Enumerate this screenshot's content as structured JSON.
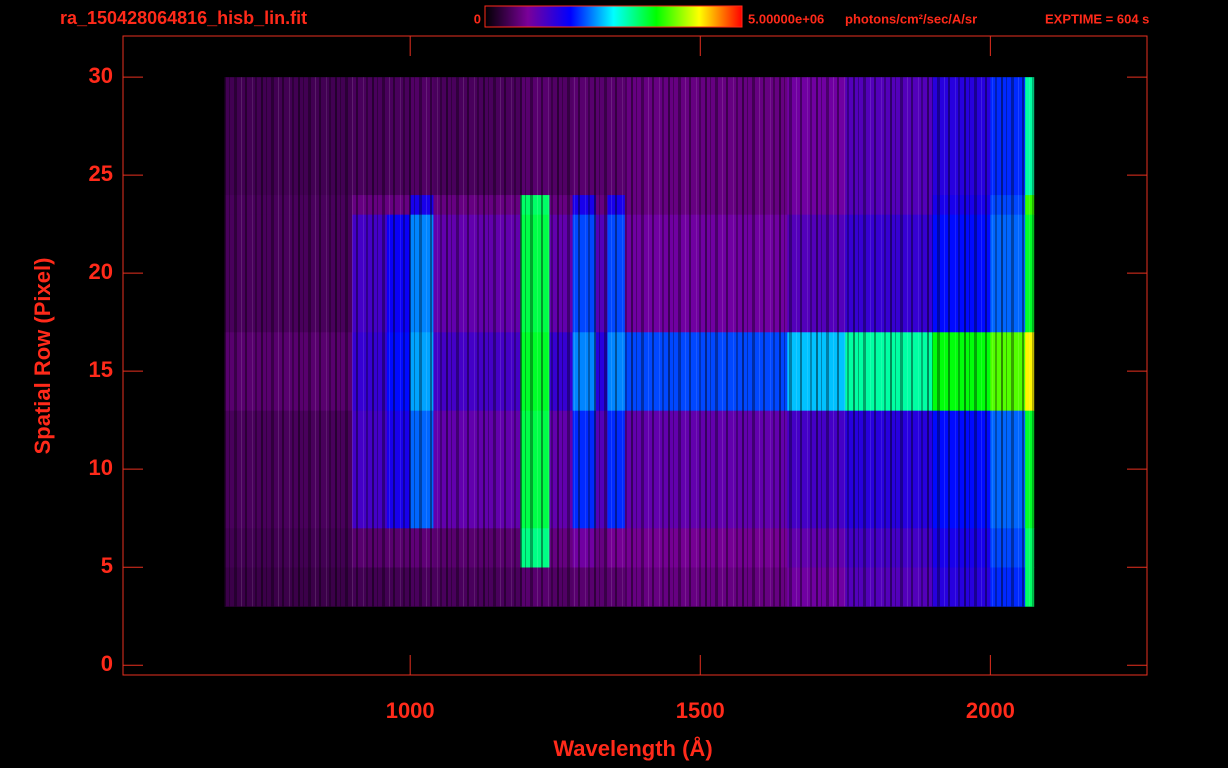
{
  "chart_data": {
    "type": "heatmap",
    "title": "ra_150428064816_hisb_lin.fit",
    "exptime": "EXPTIME = 604 s",
    "colorbar_label": "photons/cm²/sec/A/sr",
    "colorbar_ticks": [
      0,
      {
        "value": 5000000,
        "label": "5.00000e+06"
      }
    ],
    "colormap": [
      "#000000",
      "#7a0099",
      "#0000ff",
      "#00ffff",
      "#00ff00",
      "#ffff00",
      "#ff0000"
    ],
    "xlabel": "Wavelength (Å)",
    "ylabel": "Spatial Row (Pixel)",
    "xlim": [
      505,
      2270
    ],
    "ylim": [
      -0.5,
      32.1
    ],
    "xticks": [
      1000,
      1500,
      2000
    ],
    "yticks": [
      0,
      5,
      10,
      15,
      20,
      25,
      30
    ],
    "x_edges": [
      680,
      900,
      960,
      1000,
      1040,
      1190,
      1240,
      1280,
      1320,
      1340,
      1370,
      1650,
      1750,
      1900,
      2000,
      2060,
      2075
    ],
    "y_edges": [
      3,
      5,
      7,
      13,
      17,
      23,
      24,
      30
    ],
    "values": [
      [
        400000,
        450000,
        450000,
        500000,
        500000,
        600000,
        550000,
        600000,
        600000,
        600000,
        700000,
        900000,
        1100000,
        1400000,
        1800000,
        3000000
      ],
      [
        450000,
        600000,
        600000,
        650000,
        600000,
        2900000,
        700000,
        900000,
        700000,
        800000,
        800000,
        1000000,
        1200000,
        1500000,
        1900000,
        3000000
      ],
      [
        500000,
        1200000,
        1500000,
        2000000,
        1000000,
        3100000,
        1000000,
        1800000,
        1100000,
        1800000,
        1000000,
        1200000,
        1400000,
        1700000,
        2000000,
        3200000
      ],
      [
        600000,
        1300000,
        1700000,
        2200000,
        1200000,
        3200000,
        1300000,
        2100000,
        1400000,
        2100000,
        1900000,
        2300000,
        2800000,
        3300000,
        3600000,
        4200000
      ],
      [
        500000,
        1200000,
        1600000,
        2100000,
        1000000,
        3100000,
        1000000,
        1900000,
        1100000,
        1900000,
        900000,
        1100000,
        1300000,
        1700000,
        2000000,
        3200000
      ],
      [
        500000,
        700000,
        700000,
        1500000,
        700000,
        3000000,
        700000,
        1500000,
        700000,
        1500000,
        700000,
        900000,
        1100000,
        1500000,
        1900000,
        3500000
      ],
      [
        450000,
        500000,
        500000,
        550000,
        500000,
        600000,
        550000,
        600000,
        600000,
        600000,
        700000,
        900000,
        1100000,
        1400000,
        1800000,
        2800000
      ]
    ]
  }
}
